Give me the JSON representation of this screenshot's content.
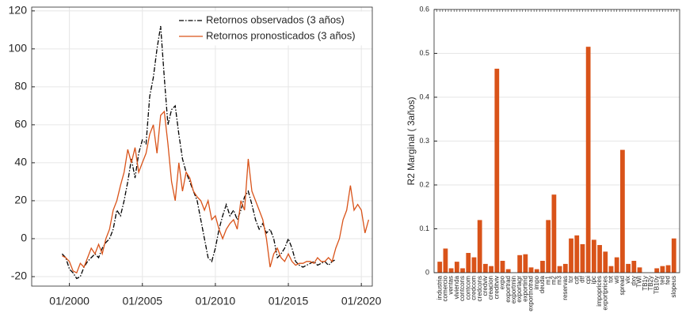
{
  "chart_data": [
    {
      "type": "line",
      "x": [
        "07/1999",
        "10/1999",
        "01/2000",
        "04/2000",
        "07/2000",
        "10/2000",
        "01/2001",
        "04/2001",
        "07/2001",
        "10/2001",
        "01/2002",
        "04/2002",
        "07/2002",
        "10/2002",
        "01/2003",
        "04/2003",
        "07/2003",
        "10/2003",
        "01/2004",
        "04/2004",
        "07/2004",
        "10/2004",
        "01/2005",
        "04/2005",
        "07/2005",
        "10/2005",
        "01/2006",
        "04/2006",
        "07/2006",
        "10/2006",
        "01/2007",
        "04/2007",
        "07/2007",
        "10/2007",
        "01/2008",
        "04/2008",
        "07/2008",
        "10/2008",
        "01/2009",
        "04/2009",
        "07/2009",
        "10/2009",
        "01/2010",
        "04/2010",
        "07/2010",
        "10/2010",
        "01/2011",
        "04/2011",
        "07/2011",
        "10/2011",
        "01/2012",
        "04/2012",
        "07/2012",
        "10/2012",
        "01/2013",
        "04/2013",
        "07/2013",
        "10/2013",
        "01/2014",
        "04/2014",
        "07/2014",
        "10/2014",
        "01/2015",
        "04/2015",
        "07/2015",
        "10/2015",
        "01/2016",
        "04/2016",
        "07/2016",
        "10/2016",
        "01/2017",
        "04/2017",
        "07/2017",
        "10/2017",
        "01/2018",
        "04/2018",
        "07/2018",
        "10/2018",
        "01/2019",
        "04/2019",
        "07/2019",
        "10/2019",
        "01/2020",
        "04/2020",
        "07/2020"
      ],
      "series": [
        {
          "name": "Retornos observados (3 años)",
          "color": "#000000",
          "dash": "6 2 1.5 2",
          "values": [
            -8,
            -10,
            -16,
            -18,
            -21,
            -20,
            -15,
            -12,
            -10,
            -8,
            -10,
            -5,
            -2,
            0,
            5,
            15,
            12,
            20,
            30,
            42,
            32,
            45,
            52,
            50,
            75,
            85,
            100,
            112,
            85,
            60,
            68,
            70,
            55,
            42,
            35,
            30,
            25,
            20,
            10,
            0,
            -10,
            -12,
            -5,
            5,
            12,
            18,
            12,
            15,
            10,
            15,
            22,
            25,
            18,
            10,
            5,
            8,
            3,
            5,
            0,
            -10,
            -8,
            -5,
            0,
            -5,
            -12,
            -14,
            -15,
            -14,
            -13,
            -12,
            -14,
            -13,
            -12,
            -14,
            -12,
            -11,
            null,
            null,
            null,
            null,
            null,
            null,
            null,
            null,
            null
          ]
        },
        {
          "name": "Retornos pronosticados (3 años)",
          "color": "#d95319",
          "values": [
            -9,
            -10,
            -12,
            -17,
            -18,
            -13,
            -15,
            -10,
            -5,
            -8,
            -3,
            -8,
            0,
            5,
            15,
            20,
            28,
            35,
            47,
            40,
            48,
            35,
            40,
            45,
            55,
            60,
            45,
            65,
            67,
            50,
            30,
            20,
            40,
            25,
            35,
            32,
            25,
            22,
            20,
            15,
            20,
            10,
            12,
            5,
            0,
            5,
            8,
            10,
            5,
            20,
            15,
            42,
            25,
            20,
            15,
            10,
            0,
            -15,
            -8,
            -5,
            -10,
            -12,
            -8,
            -12,
            -14,
            -13,
            -13,
            -12,
            -12,
            -13,
            -10,
            -12,
            -12,
            -10,
            -12,
            -5,
            0,
            10,
            15,
            28,
            15,
            18,
            15,
            3,
            10
          ]
        }
      ],
      "xlim": [
        "06/1997",
        "10/2020"
      ],
      "xticks": [
        "01/2000",
        "01/2005",
        "01/2010",
        "01/2015",
        "01/2020"
      ],
      "ylim": [
        -25,
        122
      ],
      "yticks": [
        -20,
        0,
        20,
        40,
        60,
        80,
        100,
        120
      ],
      "grid": true,
      "legend": "upper-right"
    },
    {
      "type": "bar",
      "ylabel": "R2 Marginal ( 3años)",
      "categories": [
        "industria",
        "comercio",
        "ventas",
        "vivienda",
        "contcons",
        "contcom",
        "credcom",
        "credcons",
        "credviv",
        "creacion",
        "creditviv",
        "expo",
        "exportrad",
        "exportmin",
        "exportagr",
        "exportind",
        "exportnotrad",
        "impo",
        "deuda",
        "m1",
        "m2",
        "m3",
        "reservas",
        "tcr",
        "cdt",
        "dtf",
        "cpi",
        "ipc",
        "impoprices",
        "exportprices",
        "tot",
        "wti",
        "spread",
        "vix",
        "dxy",
        "TWI",
        "TB1y",
        "TB2y",
        "TB10y",
        "ted",
        "fed",
        "slopeus"
      ],
      "values": [
        0.025,
        0.055,
        0.01,
        0.025,
        0.01,
        0.045,
        0.035,
        0.12,
        0.02,
        0.015,
        0.465,
        0.027,
        0.008,
        0,
        0.04,
        0.042,
        0.012,
        0.008,
        0.027,
        0.12,
        0.178,
        0.015,
        0.02,
        0.078,
        0.085,
        0.065,
        0.515,
        0.075,
        0.063,
        0.048,
        0.015,
        0.035,
        0.28,
        0.02,
        0.027,
        0.012,
        0,
        0,
        0.01,
        0.015,
        0.017,
        0.078
      ],
      "color": "#d95319",
      "ylim": [
        0,
        0.6
      ],
      "yticks": [
        0,
        0.1,
        0.2,
        0.3,
        0.4,
        0.5,
        0.6
      ],
      "grid": true
    }
  ]
}
